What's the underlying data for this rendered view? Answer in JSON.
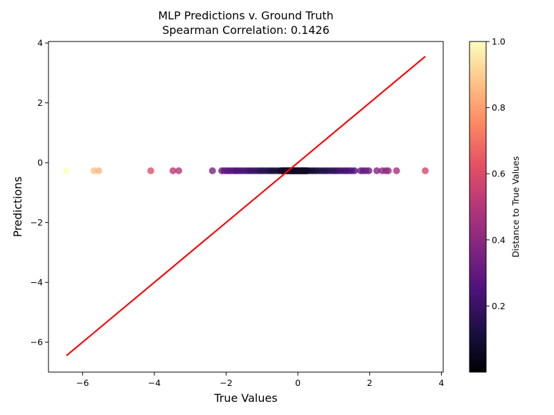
{
  "chart_data": {
    "type": "scatter",
    "title_line1": "MLP Predictions v. Ground Truth",
    "title_line2": "Spearman Correlation: 0.1426",
    "xlabel": "True Values",
    "ylabel": "Predictions",
    "xlim": [
      -6.95,
      4.05
    ],
    "ylim": [
      -7.0,
      4.05
    ],
    "xticks": [
      -6,
      -4,
      -2,
      0,
      2,
      4
    ],
    "yticks": [
      -6,
      -4,
      -2,
      0,
      2,
      4
    ],
    "xtick_labels": [
      "−6",
      "−4",
      "−2",
      "0",
      "2",
      "4"
    ],
    "ytick_labels": [
      "−6",
      "−4",
      "−2",
      "0",
      "2",
      "4"
    ],
    "grid": false,
    "identity_line": {
      "x": [
        -6.45,
        3.55
      ],
      "y": [
        -6.45,
        3.55
      ],
      "color": "#ff0000"
    },
    "colorbar": {
      "label": "Distance to True Values",
      "range": [
        0,
        1.0
      ],
      "ticks": [
        0.2,
        0.4,
        0.6,
        0.8,
        1.0
      ],
      "tick_labels": [
        "0.2",
        "0.4",
        "0.6",
        "0.8",
        "1.0"
      ],
      "colormap": "magma"
    },
    "points": {
      "prediction": -0.27,
      "x": [
        -6.45,
        -5.68,
        -5.55,
        -4.1,
        -3.48,
        -3.32,
        -2.38,
        -2.12,
        -2.05,
        -1.98,
        -1.92,
        -1.85,
        -1.78,
        -1.72,
        -1.65,
        -1.58,
        -1.5,
        -1.42,
        -1.35,
        -1.28,
        -1.2,
        -1.12,
        -1.05,
        -0.98,
        -0.9,
        -0.82,
        -0.75,
        -0.68,
        -0.6,
        -0.52,
        -0.45,
        -0.38,
        -0.3,
        -0.22,
        -0.15,
        -0.08,
        0.0,
        0.08,
        0.15,
        0.22,
        0.3,
        0.38,
        0.45,
        0.52,
        0.6,
        0.68,
        0.75,
        0.82,
        0.9,
        0.98,
        1.05,
        1.12,
        1.2,
        1.28,
        1.35,
        1.42,
        1.5,
        1.58,
        1.75,
        1.82,
        1.9,
        1.98,
        2.2,
        2.35,
        2.45,
        2.52,
        2.75,
        3.55
      ],
      "distance": [
        1.0,
        0.87,
        0.85,
        0.62,
        0.52,
        0.5,
        0.36,
        0.31,
        0.3,
        0.29,
        0.28,
        0.27,
        0.26,
        0.25,
        0.24,
        0.23,
        0.22,
        0.21,
        0.2,
        0.19,
        0.18,
        0.17,
        0.16,
        0.15,
        0.14,
        0.12,
        0.11,
        0.1,
        0.09,
        0.07,
        0.06,
        0.04,
        0.03,
        0.02,
        0.01,
        0.0,
        0.01,
        0.02,
        0.04,
        0.05,
        0.07,
        0.08,
        0.1,
        0.11,
        0.12,
        0.13,
        0.14,
        0.15,
        0.16,
        0.17,
        0.19,
        0.2,
        0.21,
        0.22,
        0.23,
        0.24,
        0.25,
        0.26,
        0.3,
        0.31,
        0.32,
        0.33,
        0.37,
        0.4,
        0.41,
        0.42,
        0.46,
        0.58
      ]
    }
  }
}
